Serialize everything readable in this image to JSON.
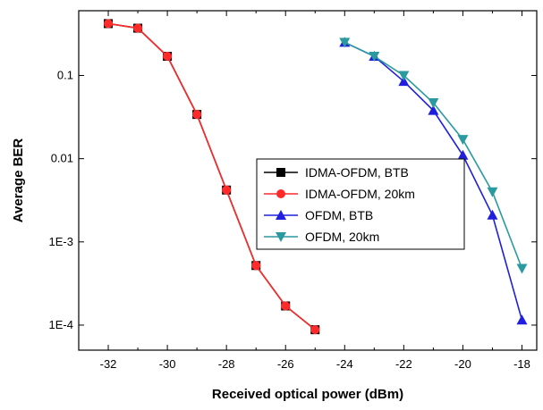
{
  "chart_data": {
    "type": "line",
    "title": "",
    "xlabel": "Received optical power (dBm)",
    "ylabel": "Average BER",
    "xlim": [
      -33.0,
      -17.5
    ],
    "ylim": [
      5e-05,
      0.6
    ],
    "yscale": "log",
    "x_ticks": [
      -32,
      -30,
      -28,
      -26,
      -24,
      -22,
      -20,
      -18
    ],
    "x_tick_labels": [
      "-32",
      "-30",
      "-28",
      "-26",
      "-24",
      "-22",
      "-20",
      "-18"
    ],
    "y_ticks": [
      0.0001,
      0.001,
      0.01,
      0.1
    ],
    "y_tick_labels": [
      "1E-4",
      "1E-3",
      "0.01",
      "0.1"
    ],
    "grid": false,
    "legend_position": "center",
    "series": [
      {
        "name": "IDMA-OFDM, BTB",
        "color": "#000000",
        "marker": "square",
        "x": [
          -32,
          -31,
          -30,
          -29,
          -28,
          -27,
          -26,
          -25
        ],
        "y": [
          0.42,
          0.37,
          0.17,
          0.034,
          0.0042,
          0.00052,
          0.00017,
          8.8e-05
        ]
      },
      {
        "name": "IDMA-OFDM, 20km",
        "color": "#ff2a2a",
        "marker": "circle",
        "x": [
          -32,
          -31,
          -30,
          -29,
          -28,
          -27,
          -26,
          -25
        ],
        "y": [
          0.42,
          0.37,
          0.17,
          0.034,
          0.0042,
          0.00052,
          0.00017,
          8.8e-05
        ]
      },
      {
        "name": "OFDM, BTB",
        "color": "#1f1fdd",
        "marker": "triangle-up",
        "x": [
          -24,
          -23,
          -22,
          -21,
          -20,
          -19,
          -18
        ],
        "y": [
          0.25,
          0.17,
          0.085,
          0.038,
          0.011,
          0.0021,
          0.000115
        ]
      },
      {
        "name": "OFDM, 20km",
        "color": "#2a9aa0",
        "marker": "triangle-down",
        "x": [
          -24,
          -23,
          -22,
          -21,
          -20,
          -19,
          -18
        ],
        "y": [
          0.25,
          0.17,
          0.1,
          0.047,
          0.017,
          0.004,
          0.00048
        ]
      }
    ]
  }
}
